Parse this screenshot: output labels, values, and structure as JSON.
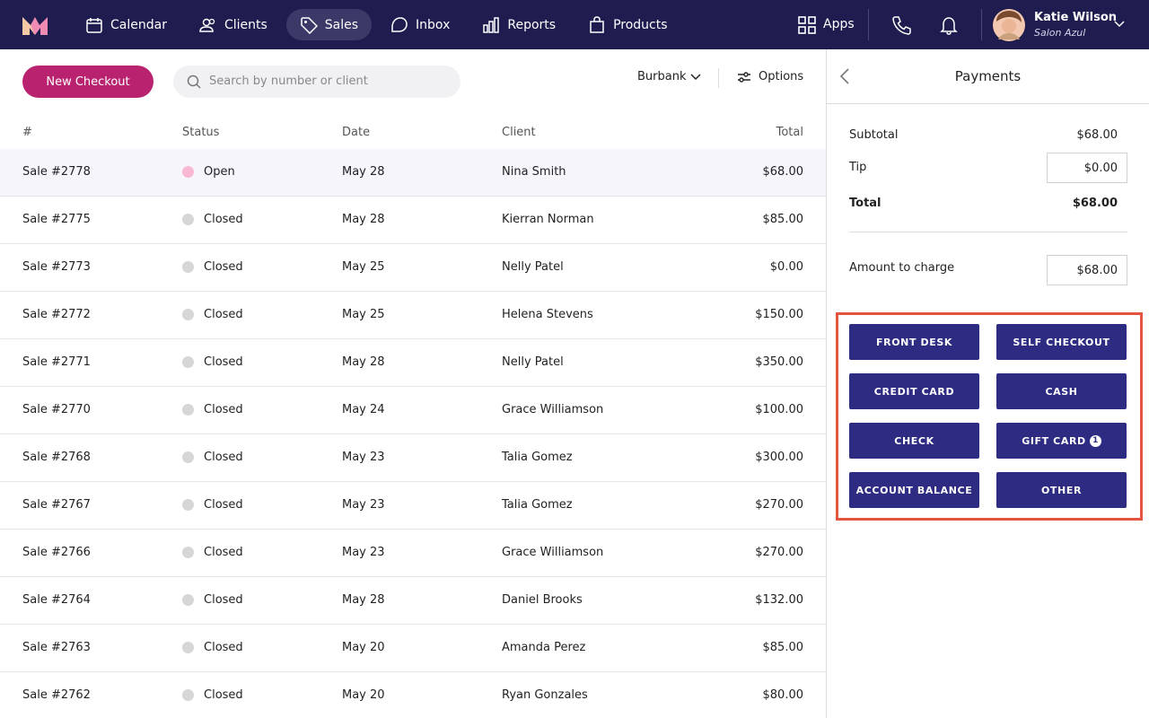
{
  "nav": {
    "items": [
      {
        "label": "Calendar",
        "active": false
      },
      {
        "label": "Clients",
        "active": false
      },
      {
        "label": "Sales",
        "active": true
      },
      {
        "label": "Inbox",
        "active": false
      },
      {
        "label": "Reports",
        "active": false
      },
      {
        "label": "Products",
        "active": false
      }
    ],
    "apps": "Apps",
    "user": {
      "name": "Katie Wilson",
      "salon": "Salon Azul"
    }
  },
  "toolbar": {
    "new_checkout": "New Checkout",
    "search_placeholder": "Search by number or client",
    "location": "Burbank",
    "options": "Options"
  },
  "table": {
    "columns": [
      "#",
      "Status",
      "Date",
      "Client",
      "Total"
    ],
    "rows": [
      {
        "number": "Sale #2778",
        "status": "Open",
        "status_color": "#f8b8d4",
        "date": "May 28",
        "client": "Nina Smith",
        "total": "$68.00",
        "selected": true
      },
      {
        "number": "Sale #2775",
        "status": "Closed",
        "status_color": "#d6d6d6",
        "date": "May 28",
        "client": "Kierran Norman",
        "total": "$85.00"
      },
      {
        "number": "Sale #2773",
        "status": "Closed",
        "status_color": "#d6d6d6",
        "date": "May 25",
        "client": "Nelly Patel",
        "total": "$0.00"
      },
      {
        "number": "Sale #2772",
        "status": "Closed",
        "status_color": "#d6d6d6",
        "date": "May 25",
        "client": "Helena Stevens",
        "total": "$150.00"
      },
      {
        "number": "Sale #2771",
        "status": "Closed",
        "status_color": "#d6d6d6",
        "date": "May 28",
        "client": "Nelly Patel",
        "total": "$350.00"
      },
      {
        "number": "Sale #2770",
        "status": "Closed",
        "status_color": "#d6d6d6",
        "date": "May 24",
        "client": "Grace Williamson",
        "total": "$100.00"
      },
      {
        "number": "Sale #2768",
        "status": "Closed",
        "status_color": "#d6d6d6",
        "date": "May 23",
        "client": "Talia Gomez",
        "total": "$300.00"
      },
      {
        "number": "Sale #2767",
        "status": "Closed",
        "status_color": "#d6d6d6",
        "date": "May 23",
        "client": "Talia Gomez",
        "total": "$270.00"
      },
      {
        "number": "Sale #2766",
        "status": "Closed",
        "status_color": "#d6d6d6",
        "date": "May 23",
        "client": "Grace Williamson",
        "total": "$270.00"
      },
      {
        "number": "Sale #2764",
        "status": "Closed",
        "status_color": "#d6d6d6",
        "date": "May 28",
        "client": "Daniel Brooks",
        "total": "$132.00"
      },
      {
        "number": "Sale #2763",
        "status": "Closed",
        "status_color": "#d6d6d6",
        "date": "May 20",
        "client": "Amanda Perez",
        "total": "$85.00"
      },
      {
        "number": "Sale #2762",
        "status": "Closed",
        "status_color": "#d6d6d6",
        "date": "May 20",
        "client": "Ryan Gonzales",
        "total": "$80.00"
      }
    ]
  },
  "payments": {
    "title": "Payments",
    "subtotal_label": "Subtotal",
    "subtotal": "$68.00",
    "tip_label": "Tip",
    "tip": "$0.00",
    "total_label": "Total",
    "total": "$68.00",
    "amount_label": "Amount to charge",
    "amount": "$68.00",
    "methods": [
      {
        "label": "FRONT DESK"
      },
      {
        "label": "SELF CHECKOUT"
      },
      {
        "label": "CREDIT CARD"
      },
      {
        "label": "CASH"
      },
      {
        "label": "CHECK"
      },
      {
        "label": "GIFT CARD",
        "badge": 1
      },
      {
        "label": "ACCOUNT BALANCE"
      },
      {
        "label": "OTHER"
      }
    ]
  }
}
